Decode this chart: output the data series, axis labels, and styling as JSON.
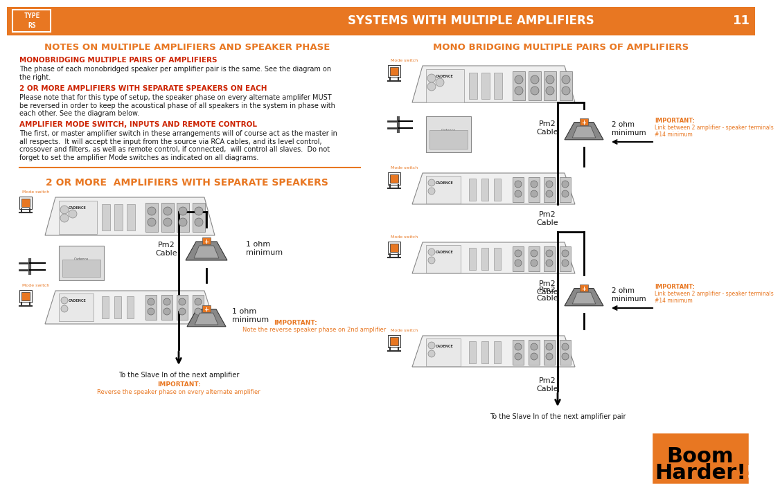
{
  "bg_color": "#ffffff",
  "orange_color": "#E87722",
  "red_color": "#CC2200",
  "dark_color": "#1a1a1a",
  "header_bg": "#E87722",
  "header_text": "SYSTEMS WITH MULTIPLE AMPLIFIERS",
  "header_page": "11",
  "header_text_color": "#ffffff",
  "left_section_title": "NOTES ON MULTIPLE AMPLIFIERS AND SPEAKER PHASE",
  "left_sub1_title": "MONOBRIDGING MULTIPLE PAIRS OF AMPLIFIERS",
  "left_sub1_body": "The phase of each monobridged speaker per amplifier pair is the same. See the diagram on\nthe right.",
  "left_sub2_title": "2 OR MORE AMPLIFIERS WITH SEPARATE SPEAKERS ON EACH",
  "left_sub2_body": "Please note that for this type of setup, the speaker phase on every alternate amplifer MUST\nbe reversed in order to keep the acoustical phase of all speakers in the system in phase with\neach other. See the diagram below.",
  "left_sub3_title": "AMPLIFIER MODE SWITCH, INPUTS AND REMOTE CONTROL",
  "left_sub3_body": "The first, or master amplifier switch in these arrangements will of course act as the master in\nall respects.  It will accept the input from the source via RCA cables, and its level control,\ncrossover and filters, as well as remote control, if connected,  will control all slaves.  Do not\nforget to set the amplifier Mode switches as indicated on all diagrams.",
  "right_section_title": "MONO BRIDGING MULTIPLE PAIRS OF AMPLIFIERS",
  "bottom_left_title": "2 OR MORE  AMPLIFIERS WITH SEPARATE SPEAKERS",
  "bottom_left_note1": "To the Slave In of the next amplifier",
  "bottom_left_important1": "IMPORTANT:",
  "bottom_left_important1_body": "Reverse the speaker phase on every alternate amplifier",
  "bottom_left_important2": "IMPORTANT:",
  "bottom_left_important2_body": "Note the reverse speaker phase on 2nd amplifier",
  "bottom_left_label1": "Pm2\nCable",
  "bottom_left_label2": "1 ohm\nminimum",
  "bottom_right_note1": "To the Slave In of the next amplifier pair",
  "bottom_right_important1": "IMPORTANT:",
  "bottom_right_important1_body": "Link between 2 amplifier - speaker terminals\n#14 minimum",
  "bottom_right_important2": "IMPORTANT:",
  "bottom_right_important2_body": "Link between 2 amplifier - speaker terminals\n#14 minimum",
  "bottom_right_label_pm2_1": "Pm2\nCable",
  "bottom_right_label_pm2_2": "Pm2\nCable",
  "bottom_right_label_pm2_3": "Pm2\nCable",
  "bottom_right_label_2ohm": "2 ohm\nminimum",
  "boom_harder_bg": "#E87722"
}
